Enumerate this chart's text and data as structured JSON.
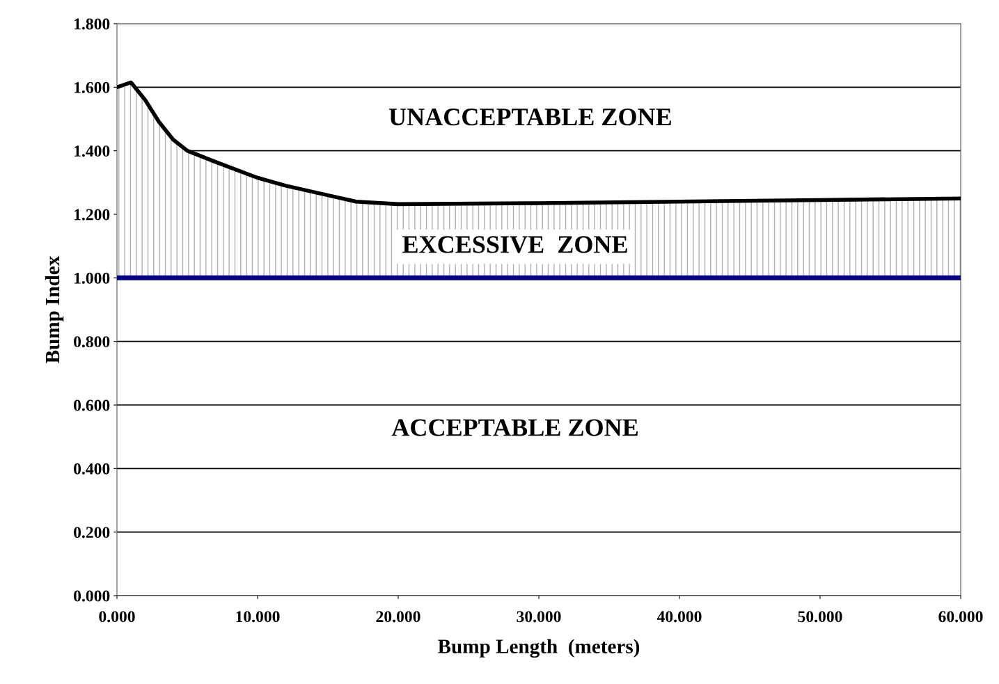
{
  "chart_data": {
    "type": "line",
    "xlabel": "Bump Length  (meters)",
    "ylabel": "Bump Index",
    "series": [
      {
        "color": "#000000",
        "x": [
          0,
          1,
          2,
          3,
          4,
          5,
          7,
          10,
          12,
          15,
          17,
          20,
          30,
          40,
          50,
          60
        ],
        "values": [
          1.6,
          1.615,
          1.56,
          1.49,
          1.435,
          1.4,
          1.365,
          1.315,
          1.29,
          1.26,
          1.24,
          1.232,
          1.235,
          1.24,
          1.245,
          1.25
        ]
      }
    ],
    "xlim": [
      0,
      60
    ],
    "ylim": [
      0,
      1.8
    ],
    "xticks": [
      {
        "value": 0,
        "label": "0.000"
      },
      {
        "value": 10,
        "label": "10.000"
      },
      {
        "value": 20,
        "label": "20.000"
      },
      {
        "value": 30,
        "label": "30.000"
      },
      {
        "value": 40,
        "label": "40.000"
      },
      {
        "value": 50,
        "label": "50.000"
      },
      {
        "value": 60,
        "label": "60.000"
      }
    ],
    "yticks": [
      {
        "value": 0,
        "label": "0.000"
      },
      {
        "value": 0.2,
        "label": "0.200"
      },
      {
        "value": 0.4,
        "label": "0.400"
      },
      {
        "value": 0.6,
        "label": "0.600"
      },
      {
        "value": 0.8,
        "label": "0.800"
      },
      {
        "value": 1.0,
        "label": "1.000"
      },
      {
        "value": 1.2,
        "label": "1.200"
      },
      {
        "value": 1.4,
        "label": "1.400"
      },
      {
        "value": 1.6,
        "label": "1.600"
      },
      {
        "value": 1.8,
        "label": "1.800"
      }
    ],
    "ref_lines": [
      {
        "axis": "y",
        "value": 1.0,
        "color": "#000080"
      }
    ],
    "annotations": [
      "UNACCEPTABLE ZONE",
      "EXCESSIVE  ZONE",
      "ACCEPTABLE ZONE"
    ],
    "grid": "y",
    "marker": "none",
    "line_style": "solid"
  }
}
